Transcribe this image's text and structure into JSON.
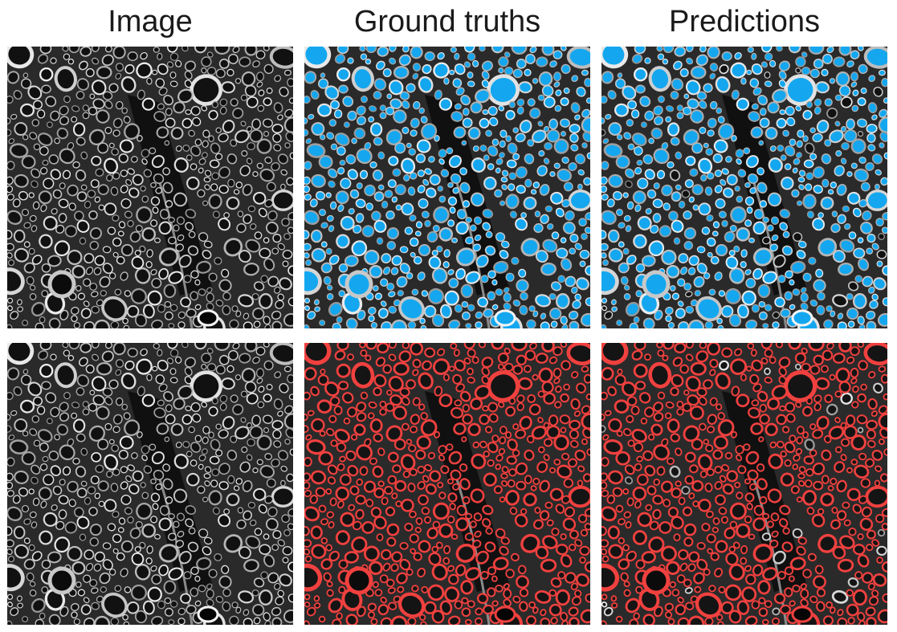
{
  "columns": [
    {
      "id": "image",
      "title": "Image"
    },
    {
      "id": "ground_truths",
      "title": "Ground truths"
    },
    {
      "id": "predictions",
      "title": "Predictions"
    }
  ],
  "rows": [
    {
      "id": "top",
      "overlay": "filled regions",
      "overlay_color": "#14a7ef"
    },
    {
      "id": "bottom",
      "overlay": "ring outlines",
      "overlay_color": "#f0413f"
    }
  ],
  "image_colors": {
    "background": "#0a0a0a",
    "ring": "#c8c8c8",
    "tissue": "#2a2a2a"
  }
}
